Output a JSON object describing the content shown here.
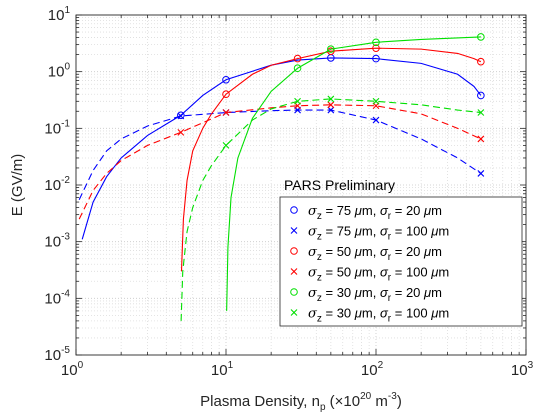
{
  "chart_data": {
    "type": "line",
    "title": "",
    "xlabel": {
      "prefix": "Plasma Density, n",
      "sub": "p",
      "mid": " (×10",
      "sup1": "20",
      "mid2": " m",
      "sup2": "-3",
      "suffix": ")"
    },
    "ylabel": "E (GV/m)",
    "xscale": "log",
    "yscale": "log",
    "xlim": [
      1,
      1000
    ],
    "ylim": [
      1e-05,
      10
    ],
    "grid": true,
    "x_ticks": [
      {
        "base": "10",
        "exp": "0"
      },
      {
        "base": "10",
        "exp": "1"
      },
      {
        "base": "10",
        "exp": "2"
      },
      {
        "base": "10",
        "exp": "3"
      }
    ],
    "y_ticks": [
      {
        "base": "10",
        "exp": "-5"
      },
      {
        "base": "10",
        "exp": "-4"
      },
      {
        "base": "10",
        "exp": "-3"
      },
      {
        "base": "10",
        "exp": "-2"
      },
      {
        "base": "10",
        "exp": "-1"
      },
      {
        "base": "10",
        "exp": "0"
      },
      {
        "base": "10",
        "exp": "1"
      }
    ],
    "annotation": "PARS Preliminary",
    "legend_position": "lower-right",
    "series": [
      {
        "label": {
          "sz": "75",
          "sr": "20"
        },
        "color": "#0000ff",
        "marker": "circle",
        "line": "solid",
        "markers": [
          [
            5,
            0.17
          ],
          [
            10,
            0.72
          ],
          [
            50,
            1.75
          ],
          [
            100,
            1.7
          ],
          [
            500,
            0.38
          ]
        ],
        "curve": [
          [
            1.1,
            0.0011
          ],
          [
            1.3,
            0.005
          ],
          [
            1.6,
            0.014
          ],
          [
            2,
            0.03
          ],
          [
            3,
            0.075
          ],
          [
            5,
            0.17
          ],
          [
            7,
            0.38
          ],
          [
            10,
            0.72
          ],
          [
            20,
            1.3
          ],
          [
            30,
            1.6
          ],
          [
            50,
            1.75
          ],
          [
            100,
            1.7
          ],
          [
            200,
            1.4
          ],
          [
            350,
            0.9
          ],
          [
            450,
            0.55
          ],
          [
            500,
            0.38
          ]
        ]
      },
      {
        "label": {
          "sz": "75",
          "sr": "100"
        },
        "color": "#0000ff",
        "marker": "x",
        "line": "dashed",
        "markers": [
          [
            5,
            0.165
          ],
          [
            10,
            0.19
          ],
          [
            30,
            0.21
          ],
          [
            50,
            0.21
          ],
          [
            100,
            0.14
          ],
          [
            500,
            0.016
          ]
        ],
        "curve": [
          [
            1.05,
            0.0055
          ],
          [
            1.3,
            0.018
          ],
          [
            1.6,
            0.04
          ],
          [
            2,
            0.065
          ],
          [
            3,
            0.11
          ],
          [
            5,
            0.165
          ],
          [
            10,
            0.19
          ],
          [
            20,
            0.205
          ],
          [
            30,
            0.21
          ],
          [
            50,
            0.21
          ],
          [
            100,
            0.14
          ],
          [
            200,
            0.065
          ],
          [
            350,
            0.03
          ],
          [
            500,
            0.016
          ]
        ]
      },
      {
        "label": {
          "sz": "50",
          "sr": "20"
        },
        "color": "#ff0000",
        "marker": "circle",
        "line": "solid",
        "markers": [
          [
            10,
            0.4
          ],
          [
            30,
            1.7
          ],
          [
            50,
            2.3
          ],
          [
            100,
            2.6
          ],
          [
            500,
            1.5
          ]
        ],
        "curve": [
          [
            5.05,
            0.0003
          ],
          [
            5.2,
            0.0025
          ],
          [
            5.5,
            0.012
          ],
          [
            6,
            0.04
          ],
          [
            7,
            0.1
          ],
          [
            8,
            0.18
          ],
          [
            10,
            0.4
          ],
          [
            15,
            0.9
          ],
          [
            20,
            1.3
          ],
          [
            30,
            1.7
          ],
          [
            50,
            2.3
          ],
          [
            100,
            2.6
          ],
          [
            200,
            2.5
          ],
          [
            350,
            2.1
          ],
          [
            450,
            1.7
          ],
          [
            500,
            1.5
          ]
        ]
      },
      {
        "label": {
          "sz": "50",
          "sr": "100"
        },
        "color": "#ff0000",
        "marker": "x",
        "line": "dashed",
        "markers": [
          [
            5,
            0.085
          ],
          [
            10,
            0.19
          ],
          [
            30,
            0.25
          ],
          [
            50,
            0.26
          ],
          [
            100,
            0.25
          ],
          [
            500,
            0.065
          ]
        ],
        "curve": [
          [
            1.05,
            0.0025
          ],
          [
            1.3,
            0.008
          ],
          [
            1.6,
            0.016
          ],
          [
            2,
            0.027
          ],
          [
            3,
            0.05
          ],
          [
            5,
            0.085
          ],
          [
            10,
            0.19
          ],
          [
            20,
            0.23
          ],
          [
            30,
            0.25
          ],
          [
            50,
            0.26
          ],
          [
            100,
            0.25
          ],
          [
            200,
            0.18
          ],
          [
            350,
            0.1
          ],
          [
            500,
            0.065
          ]
        ]
      },
      {
        "label": {
          "sz": "30",
          "sr": "20"
        },
        "color": "#00e000",
        "marker": "circle",
        "line": "solid",
        "markers": [
          [
            30,
            1.15
          ],
          [
            50,
            2.5
          ],
          [
            100,
            3.3
          ],
          [
            500,
            4.1
          ]
        ],
        "curve": [
          [
            10.1,
            6e-05
          ],
          [
            10.3,
            0.0008
          ],
          [
            10.8,
            0.006
          ],
          [
            12,
            0.03
          ],
          [
            15,
            0.15
          ],
          [
            20,
            0.45
          ],
          [
            30,
            1.15
          ],
          [
            50,
            2.5
          ],
          [
            100,
            3.3
          ],
          [
            200,
            3.7
          ],
          [
            500,
            4.1
          ]
        ]
      },
      {
        "label": {
          "sz": "30",
          "sr": "100"
        },
        "color": "#00e000",
        "marker": "x",
        "line": "dashed",
        "markers": [
          [
            10,
            0.05
          ],
          [
            30,
            0.3
          ],
          [
            50,
            0.33
          ],
          [
            100,
            0.3
          ],
          [
            500,
            0.19
          ]
        ],
        "curve": [
          [
            5.02,
            4e-05
          ],
          [
            5.15,
            0.0003
          ],
          [
            5.5,
            0.0015
          ],
          [
            6,
            0.004
          ],
          [
            7,
            0.012
          ],
          [
            8,
            0.022
          ],
          [
            10,
            0.05
          ],
          [
            15,
            0.14
          ],
          [
            20,
            0.22
          ],
          [
            30,
            0.3
          ],
          [
            50,
            0.33
          ],
          [
            100,
            0.3
          ],
          [
            200,
            0.26
          ],
          [
            350,
            0.21
          ],
          [
            500,
            0.19
          ]
        ]
      }
    ]
  }
}
